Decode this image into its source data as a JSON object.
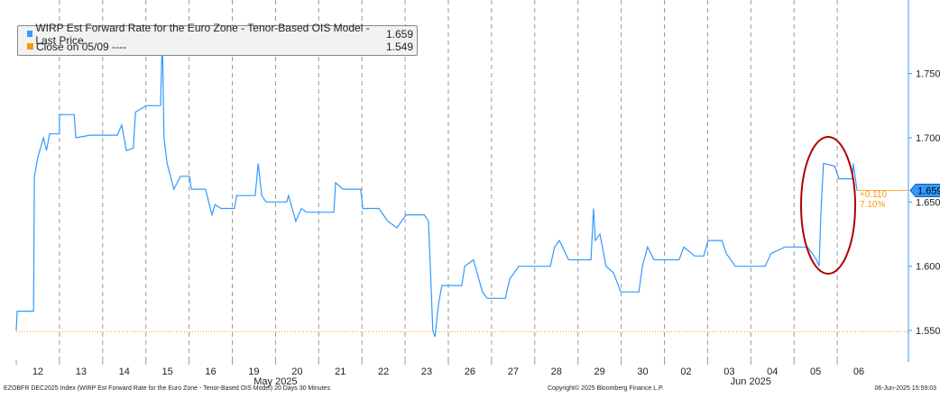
{
  "legend": {
    "series_label": "WIRP Est Forward Rate for the Euro Zone - Tenor-Based OIS Model - Last Price",
    "series_value": "1.659",
    "close_label": "Close on 05/09 ----",
    "close_value": "1.549"
  },
  "footer": {
    "left": "EZOBFR DEC2025 Index (WIRP Est Forward Rate for the Euro Zone - Tenor-Based OIS Model) 20 Days 30 Minutes",
    "center": "Copyright© 2025 Bloomberg Finance L.P.",
    "right": "06-Jun-2025 15:59:03"
  },
  "annotation": {
    "change": "+0.110",
    "pct": "7.10%",
    "last_tag": "1.659"
  },
  "colors": {
    "series": "#3399ff",
    "close": "#ff9900",
    "ellipse": "#b00000"
  },
  "chart_data": {
    "type": "line",
    "title": "WIRP Est Forward Rate for the Euro Zone - Tenor-Based OIS Model",
    "categories": [
      "12",
      "13",
      "14",
      "15",
      "16",
      "19",
      "20",
      "21",
      "22",
      "23",
      "26",
      "27",
      "28",
      "29",
      "30",
      "02",
      "03",
      "04",
      "05",
      "06"
    ],
    "month_labels": [
      {
        "label": "May 2025",
        "after_index": 6
      },
      {
        "label": "Jun 2025",
        "after_index": 17
      }
    ],
    "ylim": [
      1.52,
      1.8
    ],
    "yticks": [
      "1.550",
      "1.600",
      "1.650",
      "1.700",
      "1.750"
    ],
    "close_value": 1.549,
    "last_value": 1.659,
    "series": [
      {
        "name": "Last Price",
        "points": [
          [
            0,
            1.55
          ],
          [
            0.02,
            1.565
          ],
          [
            0.4,
            1.565
          ],
          [
            0.42,
            1.67
          ],
          [
            0.5,
            1.685
          ],
          [
            0.63,
            1.7
          ],
          [
            0.7,
            1.69
          ],
          [
            0.77,
            1.703
          ],
          [
            1.0,
            1.703
          ],
          [
            1.0,
            1.718
          ],
          [
            1.34,
            1.718
          ],
          [
            1.38,
            1.7
          ],
          [
            1.71,
            1.702
          ],
          [
            2.34,
            1.702
          ],
          [
            2.44,
            1.71
          ],
          [
            2.55,
            1.69
          ],
          [
            2.71,
            1.692
          ],
          [
            2.76,
            1.72
          ],
          [
            3.01,
            1.725
          ],
          [
            3.34,
            1.725
          ],
          [
            3.38,
            1.78
          ],
          [
            3.42,
            1.7
          ],
          [
            3.49,
            1.68
          ],
          [
            3.65,
            1.66
          ],
          [
            3.8,
            1.67
          ],
          [
            4.01,
            1.67
          ],
          [
            4.05,
            1.66
          ],
          [
            4.38,
            1.66
          ],
          [
            4.53,
            1.64
          ],
          [
            4.6,
            1.648
          ],
          [
            4.74,
            1.645
          ],
          [
            5.05,
            1.645
          ],
          [
            5.1,
            1.655
          ],
          [
            5.53,
            1.655
          ],
          [
            5.6,
            1.68
          ],
          [
            5.68,
            1.655
          ],
          [
            5.78,
            1.65
          ],
          [
            6.26,
            1.65
          ],
          [
            6.3,
            1.655
          ],
          [
            6.47,
            1.635
          ],
          [
            6.6,
            1.645
          ],
          [
            6.72,
            1.642
          ],
          [
            7.35,
            1.642
          ],
          [
            7.39,
            1.665
          ],
          [
            7.56,
            1.66
          ],
          [
            7.97,
            1.66
          ],
          [
            8.02,
            1.645
          ],
          [
            8.39,
            1.645
          ],
          [
            8.6,
            1.635
          ],
          [
            8.81,
            1.63
          ],
          [
            9.02,
            1.64
          ],
          [
            9.44,
            1.64
          ],
          [
            9.54,
            1.635
          ],
          [
            9.64,
            1.55
          ],
          [
            9.69,
            1.545
          ],
          [
            9.77,
            1.57
          ],
          [
            9.85,
            1.585
          ],
          [
            10.31,
            1.585
          ],
          [
            10.38,
            1.6
          ],
          [
            10.58,
            1.605
          ],
          [
            10.79,
            1.58
          ],
          [
            10.9,
            1.575
          ],
          [
            11.32,
            1.575
          ],
          [
            11.42,
            1.59
          ],
          [
            11.63,
            1.6
          ],
          [
            12.36,
            1.6
          ],
          [
            12.46,
            1.615
          ],
          [
            12.57,
            1.62
          ],
          [
            12.78,
            1.605
          ],
          [
            13.3,
            1.605
          ],
          [
            13.36,
            1.645
          ],
          [
            13.4,
            1.62
          ],
          [
            13.51,
            1.625
          ],
          [
            13.65,
            1.6
          ],
          [
            13.82,
            1.595
          ],
          [
            13.99,
            1.58
          ],
          [
            14.41,
            1.58
          ],
          [
            14.49,
            1.6
          ],
          [
            14.61,
            1.615
          ],
          [
            14.76,
            1.605
          ],
          [
            15.03,
            1.605
          ],
          [
            15.34,
            1.605
          ],
          [
            15.45,
            1.615
          ],
          [
            15.7,
            1.608
          ],
          [
            15.91,
            1.608
          ],
          [
            16.01,
            1.62
          ],
          [
            16.33,
            1.62
          ],
          [
            16.43,
            1.61
          ],
          [
            16.64,
            1.6
          ],
          [
            16.74,
            1.6
          ],
          [
            17.33,
            1.6
          ],
          [
            17.47,
            1.61
          ],
          [
            17.79,
            1.615
          ],
          [
            18.31,
            1.615
          ],
          [
            18.42,
            1.61
          ],
          [
            18.52,
            1.605
          ],
          [
            18.58,
            1.6
          ],
          [
            18.62,
            1.64
          ],
          [
            18.68,
            1.68
          ],
          [
            18.94,
            1.678
          ],
          [
            19.04,
            1.668
          ],
          [
            19.35,
            1.668
          ],
          [
            19.37,
            1.68
          ],
          [
            19.46,
            1.659
          ]
        ]
      }
    ]
  }
}
